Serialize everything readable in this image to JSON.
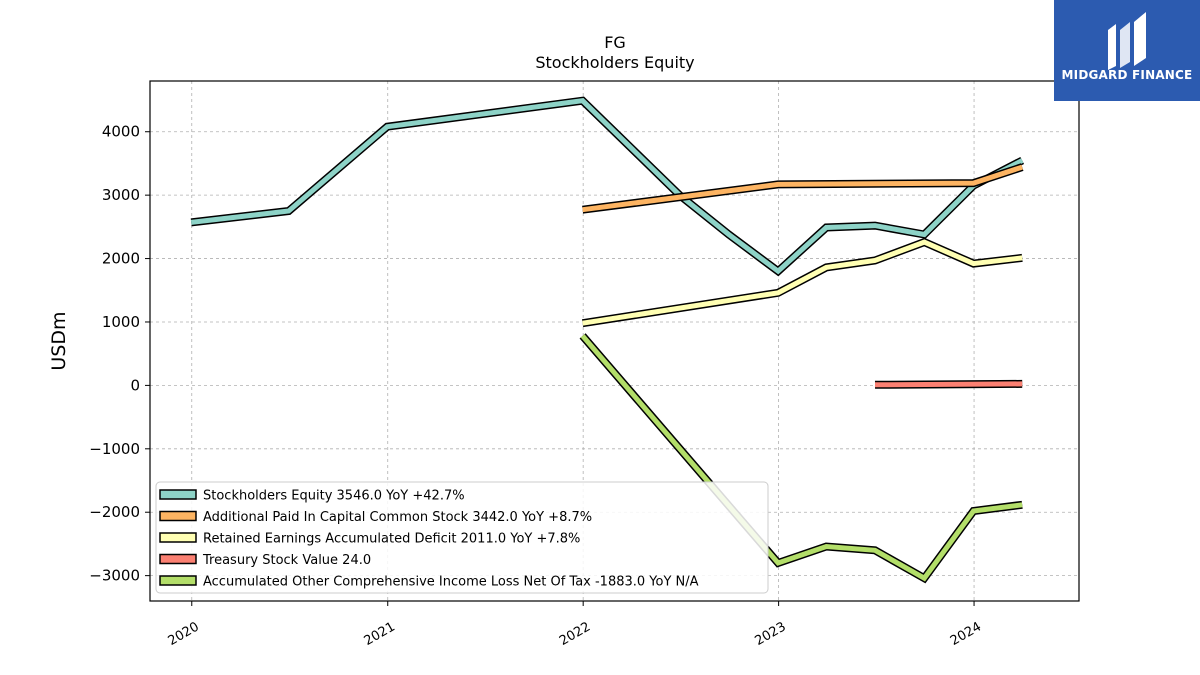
{
  "chart_data": {
    "type": "line",
    "title": "FG",
    "subtitle": "Stockholders  Equity",
    "ylabel": "USDm",
    "xlabel": "",
    "ylim": [
      -3400,
      4800
    ],
    "xlim": [
      "2019-10-15",
      "2024-07-15"
    ],
    "yticks": [
      -3000,
      -2000,
      -1000,
      0,
      1000,
      2000,
      3000,
      4000
    ],
    "xticks": [
      "2020-01-01",
      "2021-01-01",
      "2022-01-01",
      "2023-01-01",
      "2024-01-01"
    ],
    "ytick_labels": [
      "−3000",
      "−2000",
      "−1000",
      "0",
      "1000",
      "2000",
      "3000",
      "4000"
    ],
    "xtick_labels": [
      "2020",
      "2021",
      "2022",
      "2023",
      "2024"
    ],
    "grid": true,
    "legend_position": "bottom-left",
    "series": [
      {
        "name": "Stockholders Equity",
        "legend": "Stockholders Equity  3546.0 YoY +42.7%",
        "color": "#8dd3c7",
        "points": [
          [
            "2019-12-31",
            2570
          ],
          [
            "2020-06-30",
            2750
          ],
          [
            "2020-12-31",
            4080
          ],
          [
            "2021-12-31",
            4490
          ],
          [
            "2022-06-30",
            3000
          ],
          [
            "2022-09-30",
            2380
          ],
          [
            "2022-12-31",
            1800
          ],
          [
            "2023-03-31",
            2490
          ],
          [
            "2023-06-30",
            2520
          ],
          [
            "2023-09-30",
            2380
          ],
          [
            "2023-12-31",
            3150
          ],
          [
            "2024-03-31",
            3546
          ]
        ]
      },
      {
        "name": "Additional Paid In Capital Common Stock",
        "legend": "Additional Paid In Capital Common Stock  3442.0 YoY +8.7%",
        "color": "#fdb462",
        "points": [
          [
            "2021-12-31",
            2770
          ],
          [
            "2022-12-31",
            3170
          ],
          [
            "2023-12-31",
            3190
          ],
          [
            "2024-03-31",
            3442
          ]
        ]
      },
      {
        "name": "Retained Earnings Accumulated Deficit",
        "legend": "Retained Earnings Accumulated Deficit  2011.0 YoY +7.8%",
        "color": "#ffffb3",
        "points": [
          [
            "2021-12-31",
            980
          ],
          [
            "2022-12-31",
            1460
          ],
          [
            "2023-03-31",
            1860
          ],
          [
            "2023-06-30",
            1970
          ],
          [
            "2023-09-30",
            2260
          ],
          [
            "2023-12-31",
            1920
          ],
          [
            "2024-03-31",
            2011
          ]
        ]
      },
      {
        "name": "Treasury Stock Value",
        "legend": "Treasury Stock Value  24.0",
        "color": "#fb8072",
        "points": [
          [
            "2023-06-30",
            10
          ],
          [
            "2024-03-31",
            24
          ]
        ]
      },
      {
        "name": "Accumulated Other Comprehensive Income Loss Net Of Tax",
        "legend": "Accumulated Other Comprehensive Income Loss Net Of Tax  -1883.0 YoY N/A",
        "color": "#b3de69",
        "points": [
          [
            "2021-12-31",
            780
          ],
          [
            "2022-12-31",
            -2800
          ],
          [
            "2023-03-31",
            -2540
          ],
          [
            "2023-06-30",
            -2600
          ],
          [
            "2023-09-30",
            -3040
          ],
          [
            "2023-12-31",
            -1980
          ],
          [
            "2024-03-31",
            -1883
          ]
        ]
      }
    ]
  },
  "branding": {
    "name": "MIDGARD FINANCE",
    "bg_color": "#2c5bb0"
  }
}
